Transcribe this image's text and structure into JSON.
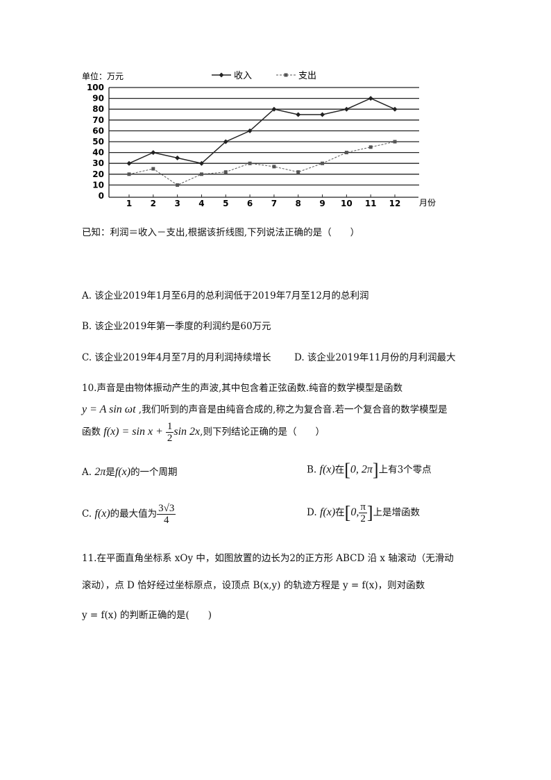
{
  "chart_data": {
    "type": "line",
    "unit_label": "单位：万元",
    "xlabel": "月份",
    "categories": [
      "1",
      "2",
      "3",
      "4",
      "5",
      "6",
      "7",
      "8",
      "9",
      "10",
      "11",
      "12"
    ],
    "yticks": [
      "0",
      "10",
      "20",
      "30",
      "40",
      "50",
      "60",
      "70",
      "80",
      "90",
      "100"
    ],
    "ylim": [
      0,
      100
    ],
    "grid": true,
    "legend_position": "top",
    "series": [
      {
        "name": "收入",
        "values": [
          30,
          40,
          35,
          30,
          50,
          60,
          80,
          75,
          75,
          80,
          90,
          80
        ],
        "color": "#222222",
        "marker": "diamond",
        "line": "solid"
      },
      {
        "name": "支出",
        "values": [
          20,
          25,
          10,
          20,
          22,
          30,
          27,
          22,
          30,
          40,
          45,
          50
        ],
        "color": "#555555",
        "marker": "square",
        "line": "dashed"
      }
    ]
  },
  "q9": {
    "stem": "已知：利润＝收入－支出,根据该折线图,下列说法正确的是（　　）",
    "A": "A.  该企业2019年1月至6月的总利润低于2019年7月至12月的总利润",
    "B": "B.  该企业2019年第一季度的利润约是60万元",
    "C": "C.  该企业2019年4月至7月的月利润持续增长",
    "D": "D.  该企业2019年11月份的月利润最大"
  },
  "q10": {
    "l1": "10.声音是由物体振动产生的声波,其中包含着正弦函数.纯音的数学模型是函数",
    "l2a": "y = A sin ωt",
    "l2b": " ,我们听到的声音是由纯音合成的,称之为复合音.若一个复合音的数学模型是",
    "l3a": "函数 ",
    "l3f": "f(x) = sin x + ",
    "l3n": "1",
    "l3d": "2",
    "l3b": "sin 2x",
    "l3c": ",则下列结论正确的是（　　）",
    "A_pre": "A.  ",
    "A_m": "2π",
    "A_t": "是",
    "A_f": "f(x)",
    "A_t2": "的一个周期",
    "B_pre": "B.  ",
    "B_f": "f(x)",
    "B_t": "在",
    "B_int": "0, 2π",
    "B_t2": "上有3个零点",
    "C_pre": "C.  ",
    "C_f": "f(x)",
    "C_t": "的最大值为",
    "C_n": "3√3",
    "C_d": "4",
    "D_pre": "D.  ",
    "D_f": "f(x)",
    "D_t": "在",
    "D_a": "0,",
    "D_n": "π",
    "D_d": "2",
    "D_t2": "上是增函数"
  },
  "q11": {
    "l1": "11.在平面直角坐标系 xOy 中，如图放置的边长为2的正方形 ABCD 沿 x 轴滚动（无滑动",
    "l2": "滚动），点 D 恰好经过坐标原点，设顶点 B(x,y) 的轨迹方程是 y = f(x)，则对函数",
    "l3": "y = f(x) 的判断正确的是(　　)"
  }
}
